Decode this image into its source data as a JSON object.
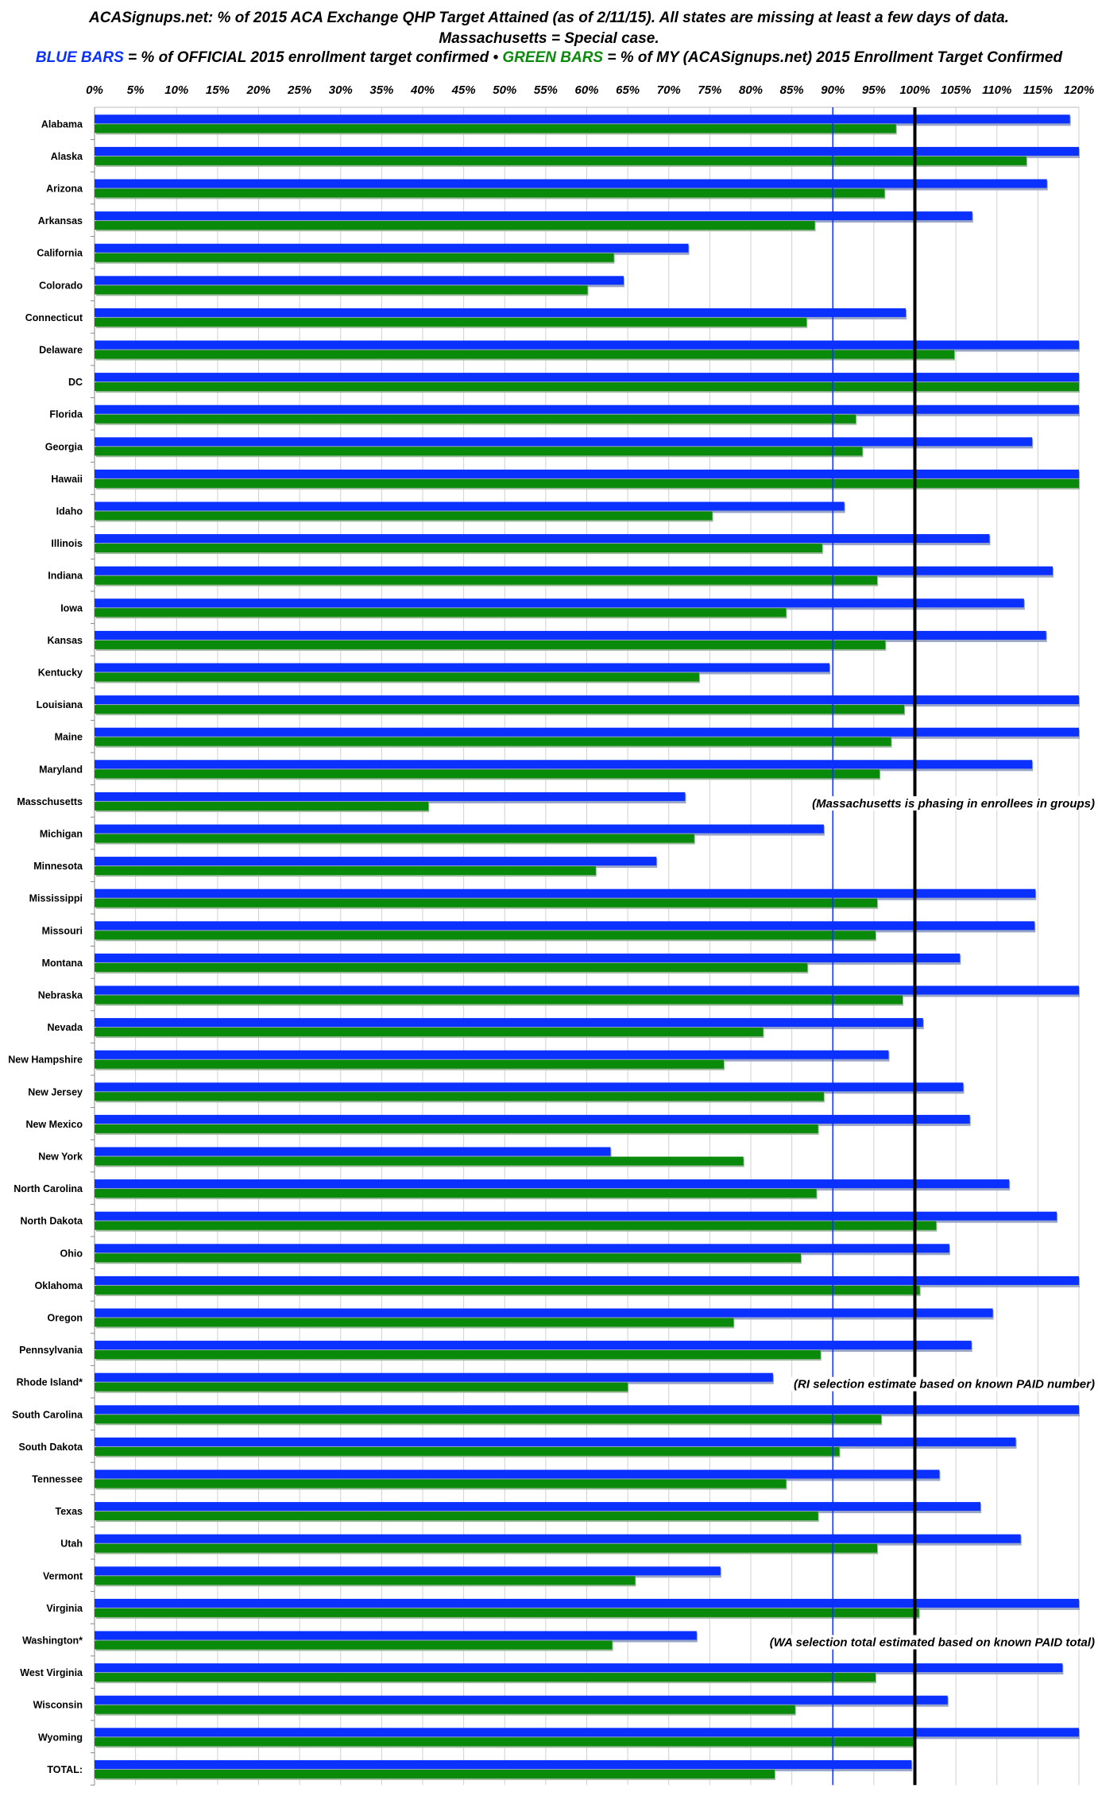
{
  "header": {
    "line1": "ACASignups.net: % of 2015 ACA Exchange QHP Target Attained (as of 2/11/15). All states are missing at least a few days of data.",
    "line2": "Massachusetts = Special case.",
    "legend_blue": "BLUE BARS",
    "legend_blue_text": " = % of OFFICIAL 2015 enrollment target confirmed  •  ",
    "legend_green": "GREEN BARS",
    "legend_green_text": " = % of MY (ACASignups.net) 2015 Enrollment Target Confirmed"
  },
  "chart_data": {
    "type": "bar",
    "orientation": "horizontal",
    "xlim": [
      0,
      120
    ],
    "x_ticks": [
      "0%",
      "5%",
      "10%",
      "15%",
      "20%",
      "25%",
      "30%",
      "35%",
      "40%",
      "45%",
      "50%",
      "55%",
      "60%",
      "65%",
      "70%",
      "75%",
      "80%",
      "85%",
      "90%",
      "95%",
      "100%",
      "105%",
      "110%",
      "115%",
      "120%"
    ],
    "grid": true,
    "reference_lines": [
      {
        "value": 90,
        "color": "#0a31ff"
      },
      {
        "value": 100,
        "color": "#000000"
      }
    ],
    "colors": {
      "official": "#0a31ff",
      "mine": "#0a8a0a"
    },
    "categories": [
      "Alabama",
      "Alaska",
      "Arizona",
      "Arkansas",
      "California",
      "Colorado",
      "Connecticut",
      "Delaware",
      "DC",
      "Florida",
      "Georgia",
      "Hawaii",
      "Idaho",
      "Illinois",
      "Indiana",
      "Iowa",
      "Kansas",
      "Kentucky",
      "Louisiana",
      "Maine",
      "Maryland",
      "Masschusetts",
      "Michigan",
      "Minnesota",
      "Mississippi",
      "Missouri",
      "Montana",
      "Nebraska",
      "Nevada",
      "New Hampshire",
      "New Jersey",
      "New Mexico",
      "New York",
      "North Carolina",
      "North Dakota",
      "Ohio",
      "Oklahoma",
      "Oregon",
      "Pennsylvania",
      "Rhode Island*",
      "South Carolina",
      "South Dakota",
      "Tennessee",
      "Texas",
      "Utah",
      "Vermont",
      "Virginia",
      "Washington*",
      "West Virginia",
      "Wisconsin",
      "Wyoming",
      "TOTAL:"
    ],
    "series": [
      {
        "key": "official",
        "values": [
          118.9,
          120,
          116.1,
          107.0,
          72.4,
          64.5,
          98.9,
          120,
          120,
          120,
          114.3,
          120,
          91.4,
          109.1,
          116.8,
          113.3,
          116.0,
          89.6,
          120,
          120,
          114.3,
          72.0,
          88.9,
          68.5,
          114.7,
          114.6,
          105.5,
          120,
          101.0,
          96.8,
          105.9,
          106.7,
          62.9,
          111.5,
          117.3,
          104.2,
          120,
          109.5,
          106.9,
          82.7,
          120,
          112.3,
          103.0,
          108.0,
          112.9,
          76.3,
          120,
          73.4,
          118.0,
          104.0,
          120,
          99.6
        ]
      },
      {
        "key": "mine",
        "values": [
          97.7,
          113.6,
          96.3,
          87.8,
          63.3,
          60.1,
          86.8,
          104.8,
          120,
          92.8,
          93.6,
          120,
          75.3,
          88.7,
          95.4,
          84.3,
          96.4,
          73.7,
          98.7,
          97.1,
          95.7,
          40.7,
          73.1,
          61.1,
          95.4,
          95.2,
          86.9,
          98.5,
          81.5,
          76.7,
          88.9,
          88.2,
          79.1,
          88.0,
          102.6,
          86.1,
          100.6,
          77.9,
          88.5,
          65.0,
          95.9,
          90.8,
          84.3,
          88.2,
          95.4,
          65.9,
          100.5,
          63.1,
          95.2,
          85.4,
          100.0,
          82.9
        ]
      }
    ],
    "annotations": [
      {
        "category": "Masschusetts",
        "text": "(Massachusetts is phasing in enrollees in groups)"
      },
      {
        "category": "Rhode Island*",
        "text": "(RI selection estimate based on known PAID number)"
      },
      {
        "category": "Washington*",
        "text": "(WA selection total estimated based on known PAID total)"
      }
    ]
  }
}
